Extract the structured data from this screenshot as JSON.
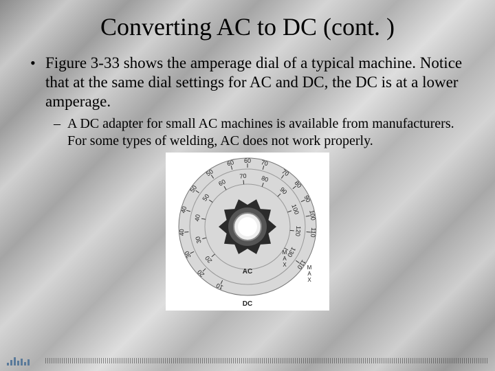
{
  "title": "Converting AC to DC (cont. )",
  "bullet": "Figure 3-33 shows the amperage dial of a typical machine. Notice that at the same dial settings for AC and DC, the DC is at a lower amperage.",
  "sub_bullet": "A DC adapter for small AC machines is available from manufacturers. For some types of welding, AC does not work properly.",
  "dial": {
    "background_color": "#ffffff",
    "face_color": "#d8d8d8",
    "knob_color": "#2b2b2b",
    "cap_color": "#eeeeee",
    "tick_font_size": 9,
    "label_font_size": 10,
    "outer_label": "DC",
    "inner_label": "AC",
    "max_label": "MAX",
    "outer_ticks": [
      {
        "v": "10",
        "a": 245
      },
      {
        "v": "20",
        "a": 225
      },
      {
        "v": "30",
        "a": 205
      },
      {
        "v": "40",
        "a": 185
      },
      {
        "v": "40",
        "a": 165
      },
      {
        "v": "50",
        "a": 145
      },
      {
        "v": "50",
        "a": 125
      },
      {
        "v": "60",
        "a": 105
      },
      {
        "v": "60",
        "a": 90
      },
      {
        "v": "70",
        "a": 75
      },
      {
        "v": "70",
        "a": 55
      },
      {
        "v": "80",
        "a": 40
      },
      {
        "v": "90",
        "a": 25
      },
      {
        "v": "100",
        "a": 10
      },
      {
        "v": "110",
        "a": -5
      },
      {
        "v": "110",
        "a": -35
      }
    ],
    "inner_ticks": [
      {
        "v": "20",
        "a": 220
      },
      {
        "v": "30",
        "a": 195
      },
      {
        "v": "40",
        "a": 170
      },
      {
        "v": "50",
        "a": 145
      },
      {
        "v": "60",
        "a": 120
      },
      {
        "v": "70",
        "a": 95
      },
      {
        "v": "80",
        "a": 70
      },
      {
        "v": "90",
        "a": 45
      },
      {
        "v": "100",
        "a": 20
      },
      {
        "v": "120",
        "a": -5
      },
      {
        "v": "130",
        "a": -30
      }
    ]
  },
  "colors": {
    "text": "#000000"
  }
}
